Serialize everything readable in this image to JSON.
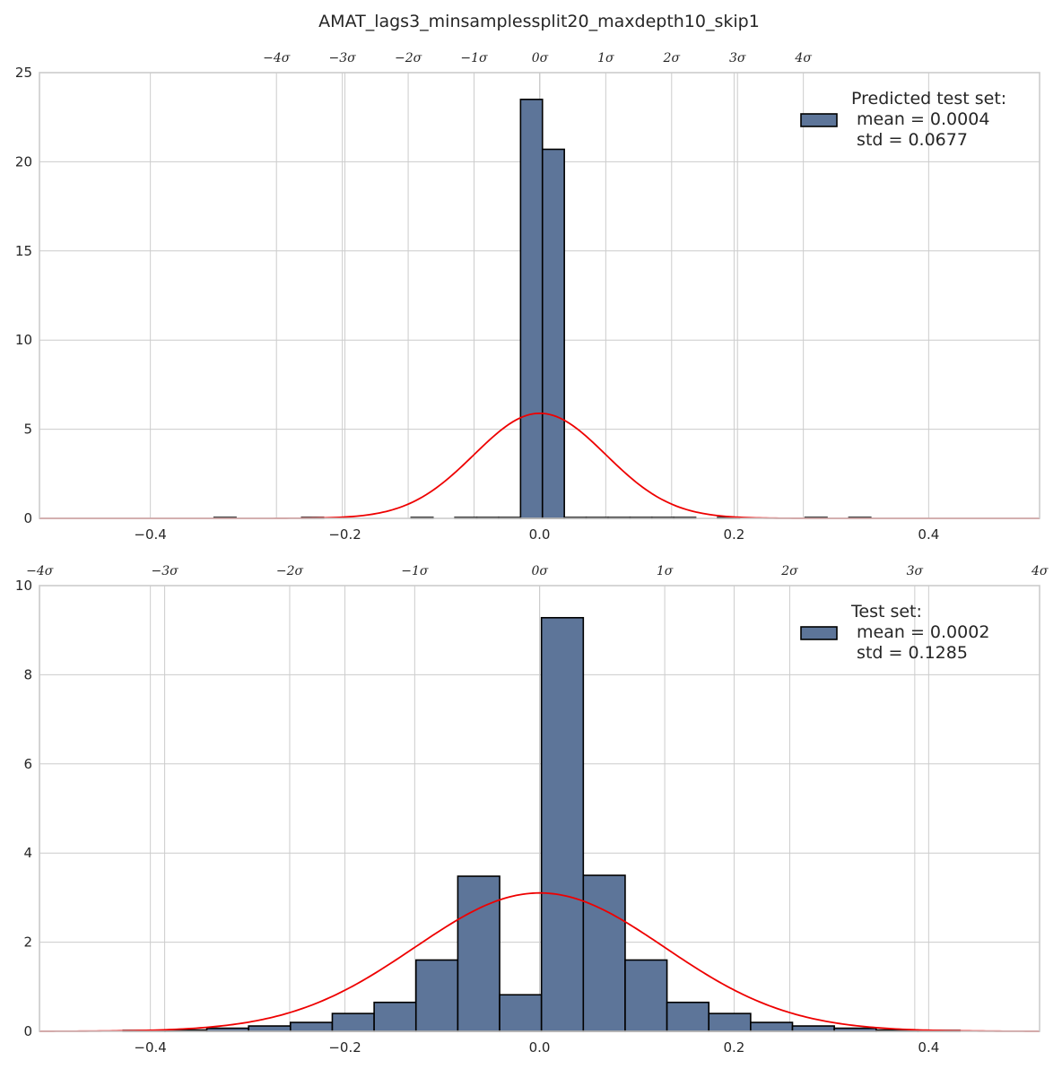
{
  "figure_title": "AMAT_lags3_minsamplessplit20_maxdepth10_skip1",
  "colors": {
    "bar_fill": "#5d7599",
    "bar_edge": "#000000",
    "curve": "#ee0000",
    "grid": "#cccccc",
    "frame": "#cccccc"
  },
  "chart_data": [
    {
      "type": "histogram",
      "title": "",
      "xlim": [
        -0.514,
        0.514
      ],
      "ylim": [
        0,
        25
      ],
      "x_ticks": [
        -0.4,
        -0.2,
        0.0,
        0.2,
        0.4
      ],
      "x_tick_labels": [
        "−0.4",
        "−0.2",
        "0.0",
        "0.2",
        "0.4"
      ],
      "y_ticks": [
        0,
        5,
        10,
        15,
        20,
        25
      ],
      "y_tick_labels": [
        "0",
        "5",
        "10",
        "15",
        "20",
        "25"
      ],
      "sigma_ticks": [
        -4,
        -3,
        -2,
        -1,
        0,
        1,
        2,
        3,
        4
      ],
      "sigma_tick_labels": [
        "−4σ",
        "−3σ",
        "−2σ",
        "−1σ",
        "0σ",
        "1σ",
        "2σ",
        "3σ",
        "4σ"
      ],
      "mean": 0.0004,
      "std": 0.0677,
      "legend": {
        "line1": "Predicted test set:",
        "line2": " mean = 0.0004",
        "line3": " std = 0.0677",
        "position": "top-right"
      },
      "bins": [
        {
          "x0": -0.3345,
          "x1": -0.312,
          "h": 0.05
        },
        {
          "x0": -0.2445,
          "x1": -0.222,
          "h": 0.05
        },
        {
          "x0": -0.132,
          "x1": -0.1095,
          "h": 0.05
        },
        {
          "x0": -0.087,
          "x1": -0.0645,
          "h": 0.05
        },
        {
          "x0": -0.0645,
          "x1": -0.042,
          "h": 0.05
        },
        {
          "x0": -0.042,
          "x1": -0.0195,
          "h": 0.05
        },
        {
          "x0": -0.0195,
          "x1": 0.003,
          "h": 23.5
        },
        {
          "x0": 0.003,
          "x1": 0.0255,
          "h": 20.7
        },
        {
          "x0": 0.0255,
          "x1": 0.048,
          "h": 0.05
        },
        {
          "x0": 0.048,
          "x1": 0.0705,
          "h": 0.05
        },
        {
          "x0": 0.0705,
          "x1": 0.093,
          "h": 0.05
        },
        {
          "x0": 0.093,
          "x1": 0.1155,
          "h": 0.05
        },
        {
          "x0": 0.1155,
          "x1": 0.138,
          "h": 0.05
        },
        {
          "x0": 0.138,
          "x1": 0.1605,
          "h": 0.05
        },
        {
          "x0": 0.183,
          "x1": 0.2055,
          "h": 0.05
        },
        {
          "x0": 0.273,
          "x1": 0.2955,
          "h": 0.05
        },
        {
          "x0": 0.318,
          "x1": 0.3405,
          "h": 0.05
        }
      ]
    },
    {
      "type": "histogram",
      "title": "",
      "xlim": [
        -0.514,
        0.514
      ],
      "ylim": [
        0,
        10
      ],
      "x_ticks": [
        -0.4,
        -0.2,
        0.0,
        0.2,
        0.4
      ],
      "x_tick_labels": [
        "−0.4",
        "−0.2",
        "0.0",
        "0.2",
        "0.4"
      ],
      "y_ticks": [
        0,
        2,
        4,
        6,
        8,
        10
      ],
      "y_tick_labels": [
        "0",
        "2",
        "4",
        "6",
        "8",
        "10"
      ],
      "sigma_ticks": [
        -4,
        -3,
        -2,
        -1,
        0,
        1,
        2,
        3,
        4
      ],
      "sigma_tick_labels": [
        "−4σ",
        "−3σ",
        "−2σ",
        "−1σ",
        "0σ",
        "1σ",
        "2σ",
        "3σ",
        "4σ"
      ],
      "mean": 0.0002,
      "std": 0.1285,
      "legend": {
        "line1": "Test set:",
        "line2": " mean = 0.0002",
        "line3": " std = 0.1285",
        "position": "top-right"
      },
      "bins": [
        {
          "x0": -0.428,
          "x1": -0.385,
          "h": 0.02
        },
        {
          "x0": -0.385,
          "x1": -0.342,
          "h": 0.03
        },
        {
          "x0": -0.342,
          "x1": -0.299,
          "h": 0.07
        },
        {
          "x0": -0.299,
          "x1": -0.256,
          "h": 0.12
        },
        {
          "x0": -0.256,
          "x1": -0.213,
          "h": 0.2
        },
        {
          "x0": -0.213,
          "x1": -0.17,
          "h": 0.4
        },
        {
          "x0": -0.17,
          "x1": -0.127,
          "h": 0.65
        },
        {
          "x0": -0.127,
          "x1": -0.084,
          "h": 1.6
        },
        {
          "x0": -0.084,
          "x1": -0.041,
          "h": 3.48
        },
        {
          "x0": -0.041,
          "x1": 0.002,
          "h": 0.82
        },
        {
          "x0": 0.002,
          "x1": 0.045,
          "h": 9.28
        },
        {
          "x0": 0.045,
          "x1": 0.088,
          "h": 3.5
        },
        {
          "x0": 0.088,
          "x1": 0.131,
          "h": 1.6
        },
        {
          "x0": 0.131,
          "x1": 0.174,
          "h": 0.65
        },
        {
          "x0": 0.174,
          "x1": 0.217,
          "h": 0.4
        },
        {
          "x0": 0.217,
          "x1": 0.26,
          "h": 0.2
        },
        {
          "x0": 0.26,
          "x1": 0.303,
          "h": 0.12
        },
        {
          "x0": 0.303,
          "x1": 0.346,
          "h": 0.07
        },
        {
          "x0": 0.346,
          "x1": 0.389,
          "h": 0.03
        },
        {
          "x0": 0.389,
          "x1": 0.432,
          "h": 0.02
        }
      ]
    }
  ]
}
